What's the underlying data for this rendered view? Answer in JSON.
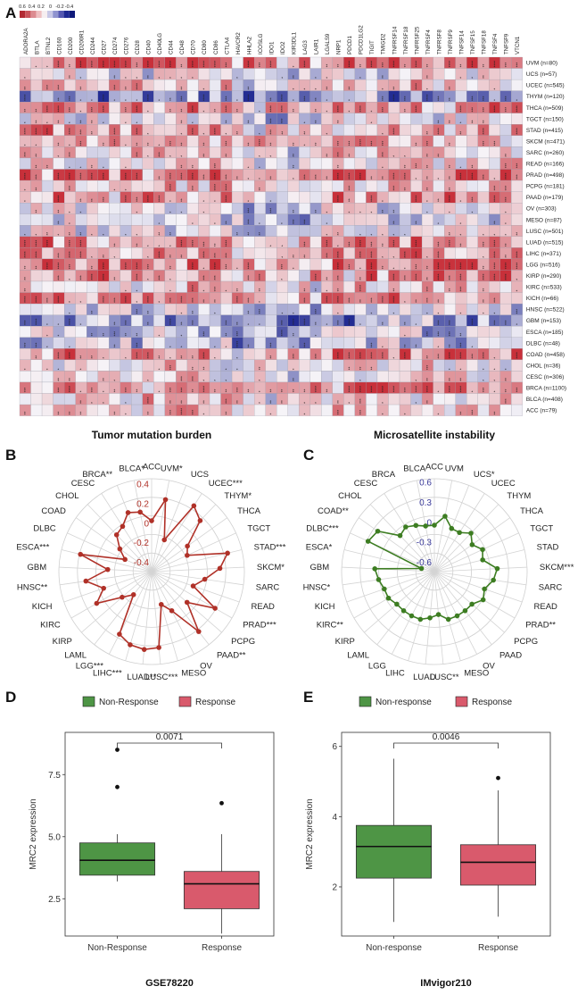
{
  "panels": {
    "A": "A",
    "B": "B",
    "C": "C",
    "D": "D",
    "E": "E"
  },
  "colors": {
    "red": "#c8303a",
    "blue": "#101a8a",
    "white": "#f5f4f9",
    "tmb": "#b03128",
    "msi": "#3d7d22",
    "green_box": "#4e9545",
    "red_box": "#d95a6c"
  },
  "chart_data": [
    {
      "id": "A",
      "type": "heatmap",
      "legend_ticks": [
        "0.6",
        "0.4",
        "0.2",
        "0",
        "-0.2",
        "-0.4"
      ],
      "genes": [
        "ADORA2A",
        "BTLA",
        "BTNL2",
        "CD160",
        "CD200",
        "CD200R1",
        "CD244",
        "CD27",
        "CD274",
        "CD276",
        "CD28",
        "CD40",
        "CD40LG",
        "CD44",
        "CD48",
        "CD70",
        "CD80",
        "CD86",
        "CTLA4",
        "HAVCR2",
        "HHLA2",
        "ICOSLG",
        "IDO1",
        "IDO2",
        "KIR3DL1",
        "LAG3",
        "LAIR1",
        "LGALS9",
        "NRP1",
        "PDCD1",
        "PDCD1LG2",
        "TIGIT",
        "TMIGD2",
        "TNFRSF14",
        "TNFRSF18",
        "TNFRSF25",
        "TNFRSF4",
        "TNFRSF8",
        "TNFRSF9",
        "TNFSF14",
        "TNFSF15",
        "TNFSF18",
        "TNFSF4",
        "TNFSF9",
        "VTCN1"
      ],
      "cancers": [
        "UVM (n=80)",
        "UCS (n=57)",
        "UCEC (n=545)",
        "THYM (n=120)",
        "THCA (n=509)",
        "TGCT (n=150)",
        "STAD (n=415)",
        "SKCM (n=471)",
        "SARC (n=260)",
        "READ (n=166)",
        "PRAD (n=498)",
        "PCPG (n=181)",
        "PAAD (n=179)",
        "OV (n=303)",
        "MESO (n=87)",
        "LUSC (n=501)",
        "LUAD (n=515)",
        "LIHC (n=371)",
        "LGG (n=516)",
        "KIRP (n=290)",
        "KIRC (n=533)",
        "KICH (n=66)",
        "HNSC (n=522)",
        "GBM (n=153)",
        "ESCA (n=185)",
        "DLBC (n=48)",
        "COAD (n=458)",
        "CHOL (n=36)",
        "CESC (n=306)",
        "BRCA (n=1100)",
        "BLCA (n=408)",
        "ACC (n=79)"
      ],
      "cell_marks": [
        "*",
        "**",
        "***",
        "****"
      ]
    },
    {
      "id": "B",
      "type": "radar",
      "title": "Tumor mutation burden",
      "rticks": [
        "0.4",
        "0.2",
        "0",
        "-0.2",
        "-0.4"
      ],
      "rlim": [
        -0.5,
        0.45
      ],
      "categories": [
        "ACC",
        "UVM*",
        "UCS",
        "UCEC***",
        "THYM*",
        "THCA",
        "TGCT",
        "STAD***",
        "SKCM*",
        "SARC",
        "READ",
        "PRAD***",
        "PCPG",
        "PAAD**",
        "OV",
        "MESO",
        "LUSC***",
        "LUAD**",
        "LIHC***",
        "LGG***",
        "LAML",
        "KIRP",
        "KIRC",
        "KICH",
        "HNSC**",
        "GBM",
        "ESCA***",
        "DLBC",
        "COAD",
        "CHOL",
        "CESC",
        "BRCA**",
        "BLCA*"
      ],
      "values": [
        0.02,
        0.25,
        -0.15,
        0.3,
        0.22,
        -0.05,
        -0.1,
        0.3,
        0.2,
        0.05,
        -0.05,
        0.25,
        -0.02,
        0.28,
        -0.05,
        -0.15,
        0.28,
        0.3,
        0.28,
        0.22,
        -0.2,
        -0.1,
        0.15,
        0.02,
        0.18,
        -0.05,
        0.25,
        -0.2,
        -0.1,
        0.02,
        0.05,
        0.15,
        0.12
      ]
    },
    {
      "id": "C",
      "type": "radar",
      "title": "Microsatellite instability",
      "rticks": [
        "0.6",
        "0.3",
        "0",
        "-0.3",
        "-0.6"
      ],
      "rlim": [
        -0.75,
        0.65
      ],
      "categories": [
        "ACC",
        "UVM",
        "UCS*",
        "UCEC",
        "THYM",
        "THCA",
        "TGCT",
        "STAD",
        "SKCM***",
        "SARC",
        "READ",
        "PRAD**",
        "PCPG",
        "PAAD",
        "OV",
        "MESO",
        "LUSC**",
        "LUAD",
        "LIHC",
        "LGG",
        "LAML",
        "KIRP",
        "KIRC**",
        "KICH",
        "HNSC*",
        "GBM",
        "ESCA*",
        "DLBC***",
        "COAD**",
        "CHOL",
        "CESC",
        "BRCA",
        "BLCA"
      ],
      "values": [
        -0.05,
        0.1,
        -0.05,
        -0.05,
        0.05,
        -0.05,
        0.05,
        0.0,
        0.2,
        0.15,
        0.05,
        0.1,
        0.0,
        0.0,
        0.0,
        0.0,
        -0.1,
        -0.05,
        0.0,
        0.0,
        0.0,
        0.0,
        0.05,
        0.05,
        0.1,
        0.15,
        -0.55,
        0.35,
        0.3,
        0.0,
        0.05,
        0.0,
        -0.05
      ]
    },
    {
      "id": "D",
      "type": "boxplot",
      "dataset": "GSE78220",
      "ylabel": "MRC2 expression",
      "yticks": [
        2.5,
        5.0,
        7.5
      ],
      "ylim": [
        1.0,
        9.2
      ],
      "legend": [
        "Non-Response",
        "Response"
      ],
      "groups": [
        {
          "name": "Non-Response",
          "min": 3.2,
          "q1": 3.45,
          "median": 4.05,
          "q3": 4.75,
          "max": 5.1,
          "outliers": [
            7.0,
            8.5
          ]
        },
        {
          "name": "Response",
          "min": 1.1,
          "q1": 2.1,
          "median": 3.1,
          "q3": 3.6,
          "max": 5.1,
          "outliers": [
            6.35
          ]
        }
      ],
      "pvalue": "0.0071"
    },
    {
      "id": "E",
      "type": "boxplot",
      "dataset": "IMvigor210",
      "ylabel": "MRC2 expression",
      "yticks": [
        2,
        4,
        6
      ],
      "ylim": [
        0.6,
        6.4
      ],
      "legend": [
        "Non-response",
        "Response"
      ],
      "groups": [
        {
          "name": "Non-response",
          "min": 1.0,
          "q1": 2.25,
          "median": 3.15,
          "q3": 3.75,
          "max": 5.65,
          "outliers": []
        },
        {
          "name": "Response",
          "min": 1.15,
          "q1": 2.05,
          "median": 2.7,
          "q3": 3.2,
          "max": 4.75,
          "outliers": [
            5.1
          ]
        }
      ],
      "pvalue": "0.0046"
    }
  ]
}
